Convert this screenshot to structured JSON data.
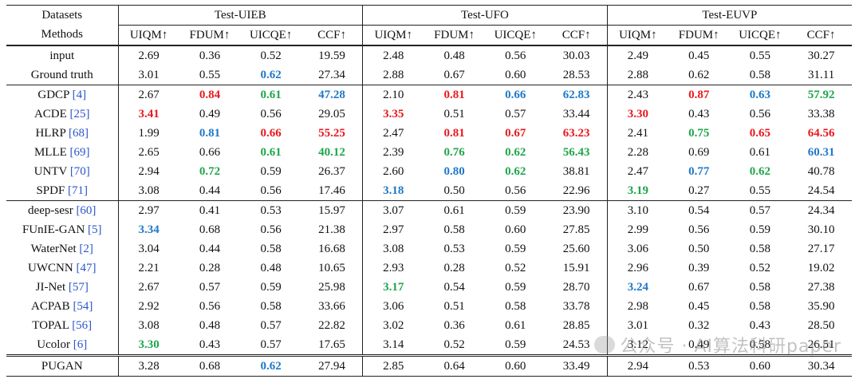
{
  "header": {
    "datasets_label": "Datasets",
    "methods_label": "Methods",
    "groups": [
      "Test-UIEB",
      "Test-UFO",
      "Test-EUVP"
    ],
    "metrics": [
      "UIQM↑",
      "FDUM↑",
      "UICQE↑",
      "CCF↑"
    ]
  },
  "colors": {
    "red": "#e8191d",
    "green": "#1ea64b",
    "blue": "#1f78c8",
    "ref": "#2b56c8"
  },
  "rows": [
    {
      "name": "input",
      "ref": "",
      "vals": [
        "2.69",
        "0.36",
        "0.52",
        "19.59",
        "2.48",
        "0.48",
        "0.56",
        "30.03",
        "2.49",
        "0.45",
        "0.55",
        "30.27"
      ],
      "col": [
        "",
        "",
        "",
        "",
        "",
        "",
        "",
        "",
        "",
        "",
        "",
        ""
      ]
    },
    {
      "name": "Ground truth",
      "ref": "",
      "vals": [
        "3.01",
        "0.55",
        "0.62",
        "27.34",
        "2.88",
        "0.67",
        "0.60",
        "28.53",
        "2.88",
        "0.62",
        "0.58",
        "31.11"
      ],
      "col": [
        "",
        "",
        "blue",
        "",
        "",
        "",
        "",
        "",
        "",
        "",
        "",
        ""
      ]
    },
    {
      "name": "GDCP ",
      "ref": "[4]",
      "vals": [
        "2.67",
        "0.84",
        "0.61",
        "47.28",
        "2.10",
        "0.81",
        "0.66",
        "62.83",
        "2.43",
        "0.87",
        "0.63",
        "57.92"
      ],
      "col": [
        "",
        "red",
        "green",
        "blue",
        "",
        "red",
        "blue",
        "blue",
        "",
        "red",
        "blue",
        "green"
      ]
    },
    {
      "name": "ACDE ",
      "ref": "[25]",
      "vals": [
        "3.41",
        "0.49",
        "0.56",
        "29.05",
        "3.35",
        "0.51",
        "0.57",
        "33.44",
        "3.30",
        "0.43",
        "0.56",
        "33.38"
      ],
      "col": [
        "red",
        "",
        "",
        "",
        "red",
        "",
        "",
        "",
        "red",
        "",
        "",
        ""
      ]
    },
    {
      "name": "HLRP ",
      "ref": "[68]",
      "vals": [
        "1.99",
        "0.81",
        "0.66",
        "55.25",
        "2.47",
        "0.81",
        "0.67",
        "63.23",
        "2.41",
        "0.75",
        "0.65",
        "64.56"
      ],
      "col": [
        "",
        "blue",
        "red",
        "red",
        "",
        "red",
        "red",
        "red",
        "",
        "green",
        "red",
        "red"
      ]
    },
    {
      "name": "MLLE ",
      "ref": "[69]",
      "vals": [
        "2.65",
        "0.66",
        "0.61",
        "40.12",
        "2.39",
        "0.76",
        "0.62",
        "56.43",
        "2.28",
        "0.69",
        "0.61",
        "60.31"
      ],
      "col": [
        "",
        "",
        "green",
        "green",
        "",
        "green",
        "green",
        "green",
        "",
        "",
        "",
        "blue"
      ]
    },
    {
      "name": "UNTV ",
      "ref": "[70]",
      "vals": [
        "2.94",
        "0.72",
        "0.59",
        "26.37",
        "2.60",
        "0.80",
        "0.62",
        "38.81",
        "2.47",
        "0.77",
        "0.62",
        "40.78"
      ],
      "col": [
        "",
        "green",
        "",
        "",
        "",
        "blue",
        "green",
        "",
        "",
        "blue",
        "green",
        ""
      ]
    },
    {
      "name": "SPDF ",
      "ref": "[71]",
      "vals": [
        "3.08",
        "0.44",
        "0.56",
        "17.46",
        "3.18",
        "0.50",
        "0.56",
        "22.96",
        "3.19",
        "0.27",
        "0.55",
        "24.54"
      ],
      "col": [
        "",
        "",
        "",
        "",
        "blue",
        "",
        "",
        "",
        "green",
        "",
        "",
        ""
      ]
    },
    {
      "name": "deep-sesr ",
      "ref": "[60]",
      "vals": [
        "2.97",
        "0.41",
        "0.53",
        "15.97",
        "3.07",
        "0.61",
        "0.59",
        "23.90",
        "3.10",
        "0.54",
        "0.57",
        "24.34"
      ],
      "col": [
        "",
        "",
        "",
        "",
        "",
        "",
        "",
        "",
        "",
        "",
        "",
        ""
      ]
    },
    {
      "name": "FUnIE-GAN ",
      "ref": "[5]",
      "vals": [
        "3.34",
        "0.68",
        "0.56",
        "21.38",
        "2.97",
        "0.58",
        "0.60",
        "27.85",
        "2.99",
        "0.56",
        "0.59",
        "30.10"
      ],
      "col": [
        "blue",
        "",
        "",
        "",
        "",
        "",
        "",
        "",
        "",
        "",
        "",
        ""
      ]
    },
    {
      "name": "WaterNet ",
      "ref": "[2]",
      "vals": [
        "3.04",
        "0.44",
        "0.58",
        "16.68",
        "3.08",
        "0.53",
        "0.59",
        "25.60",
        "3.06",
        "0.50",
        "0.58",
        "27.17"
      ],
      "col": [
        "",
        "",
        "",
        "",
        "",
        "",
        "",
        "",
        "",
        "",
        "",
        ""
      ]
    },
    {
      "name": "UWCNN ",
      "ref": "[47]",
      "vals": [
        "2.21",
        "0.28",
        "0.48",
        "10.65",
        "2.93",
        "0.28",
        "0.52",
        "15.91",
        "2.96",
        "0.39",
        "0.52",
        "19.02"
      ],
      "col": [
        "",
        "",
        "",
        "",
        "",
        "",
        "",
        "",
        "",
        "",
        "",
        ""
      ]
    },
    {
      "name": "JI-Net ",
      "ref": "[57]",
      "vals": [
        "2.67",
        "0.57",
        "0.59",
        "25.98",
        "3.17",
        "0.54",
        "0.59",
        "28.70",
        "3.24",
        "0.67",
        "0.58",
        "27.38"
      ],
      "col": [
        "",
        "",
        "",
        "",
        "green",
        "",
        "",
        "",
        "blue",
        "",
        "",
        ""
      ]
    },
    {
      "name": "ACPAB ",
      "ref": "[54]",
      "vals": [
        "2.92",
        "0.56",
        "0.58",
        "33.66",
        "3.06",
        "0.51",
        "0.58",
        "33.78",
        "2.98",
        "0.45",
        "0.58",
        "35.90"
      ],
      "col": [
        "",
        "",
        "",
        "",
        "",
        "",
        "",
        "",
        "",
        "",
        "",
        ""
      ]
    },
    {
      "name": "TOPAL ",
      "ref": "[56]",
      "vals": [
        "3.08",
        "0.48",
        "0.57",
        "22.82",
        "3.02",
        "0.36",
        "0.61",
        "28.85",
        "3.01",
        "0.32",
        "0.43",
        "28.50"
      ],
      "col": [
        "",
        "",
        "",
        "",
        "",
        "",
        "",
        "",
        "",
        "",
        "",
        ""
      ]
    },
    {
      "name": "Ucolor ",
      "ref": "[6]",
      "vals": [
        "3.30",
        "0.43",
        "0.57",
        "17.65",
        "3.14",
        "0.52",
        "0.59",
        "24.53",
        "3.12",
        "0.49",
        "0.58",
        "26.51"
      ],
      "col": [
        "green",
        "",
        "",
        "",
        "",
        "",
        "",
        "",
        "",
        "",
        "",
        ""
      ]
    },
    {
      "name": "PUGAN",
      "ref": "",
      "vals": [
        "3.28",
        "0.68",
        "0.62",
        "27.94",
        "2.85",
        "0.64",
        "0.60",
        "33.49",
        "2.94",
        "0.53",
        "0.60",
        "30.34"
      ],
      "col": [
        "",
        "",
        "blue",
        "",
        "",
        "",
        "",
        "",
        "",
        "",
        "",
        ""
      ]
    }
  ],
  "watermark": "公众号 · AI算法科研paper"
}
